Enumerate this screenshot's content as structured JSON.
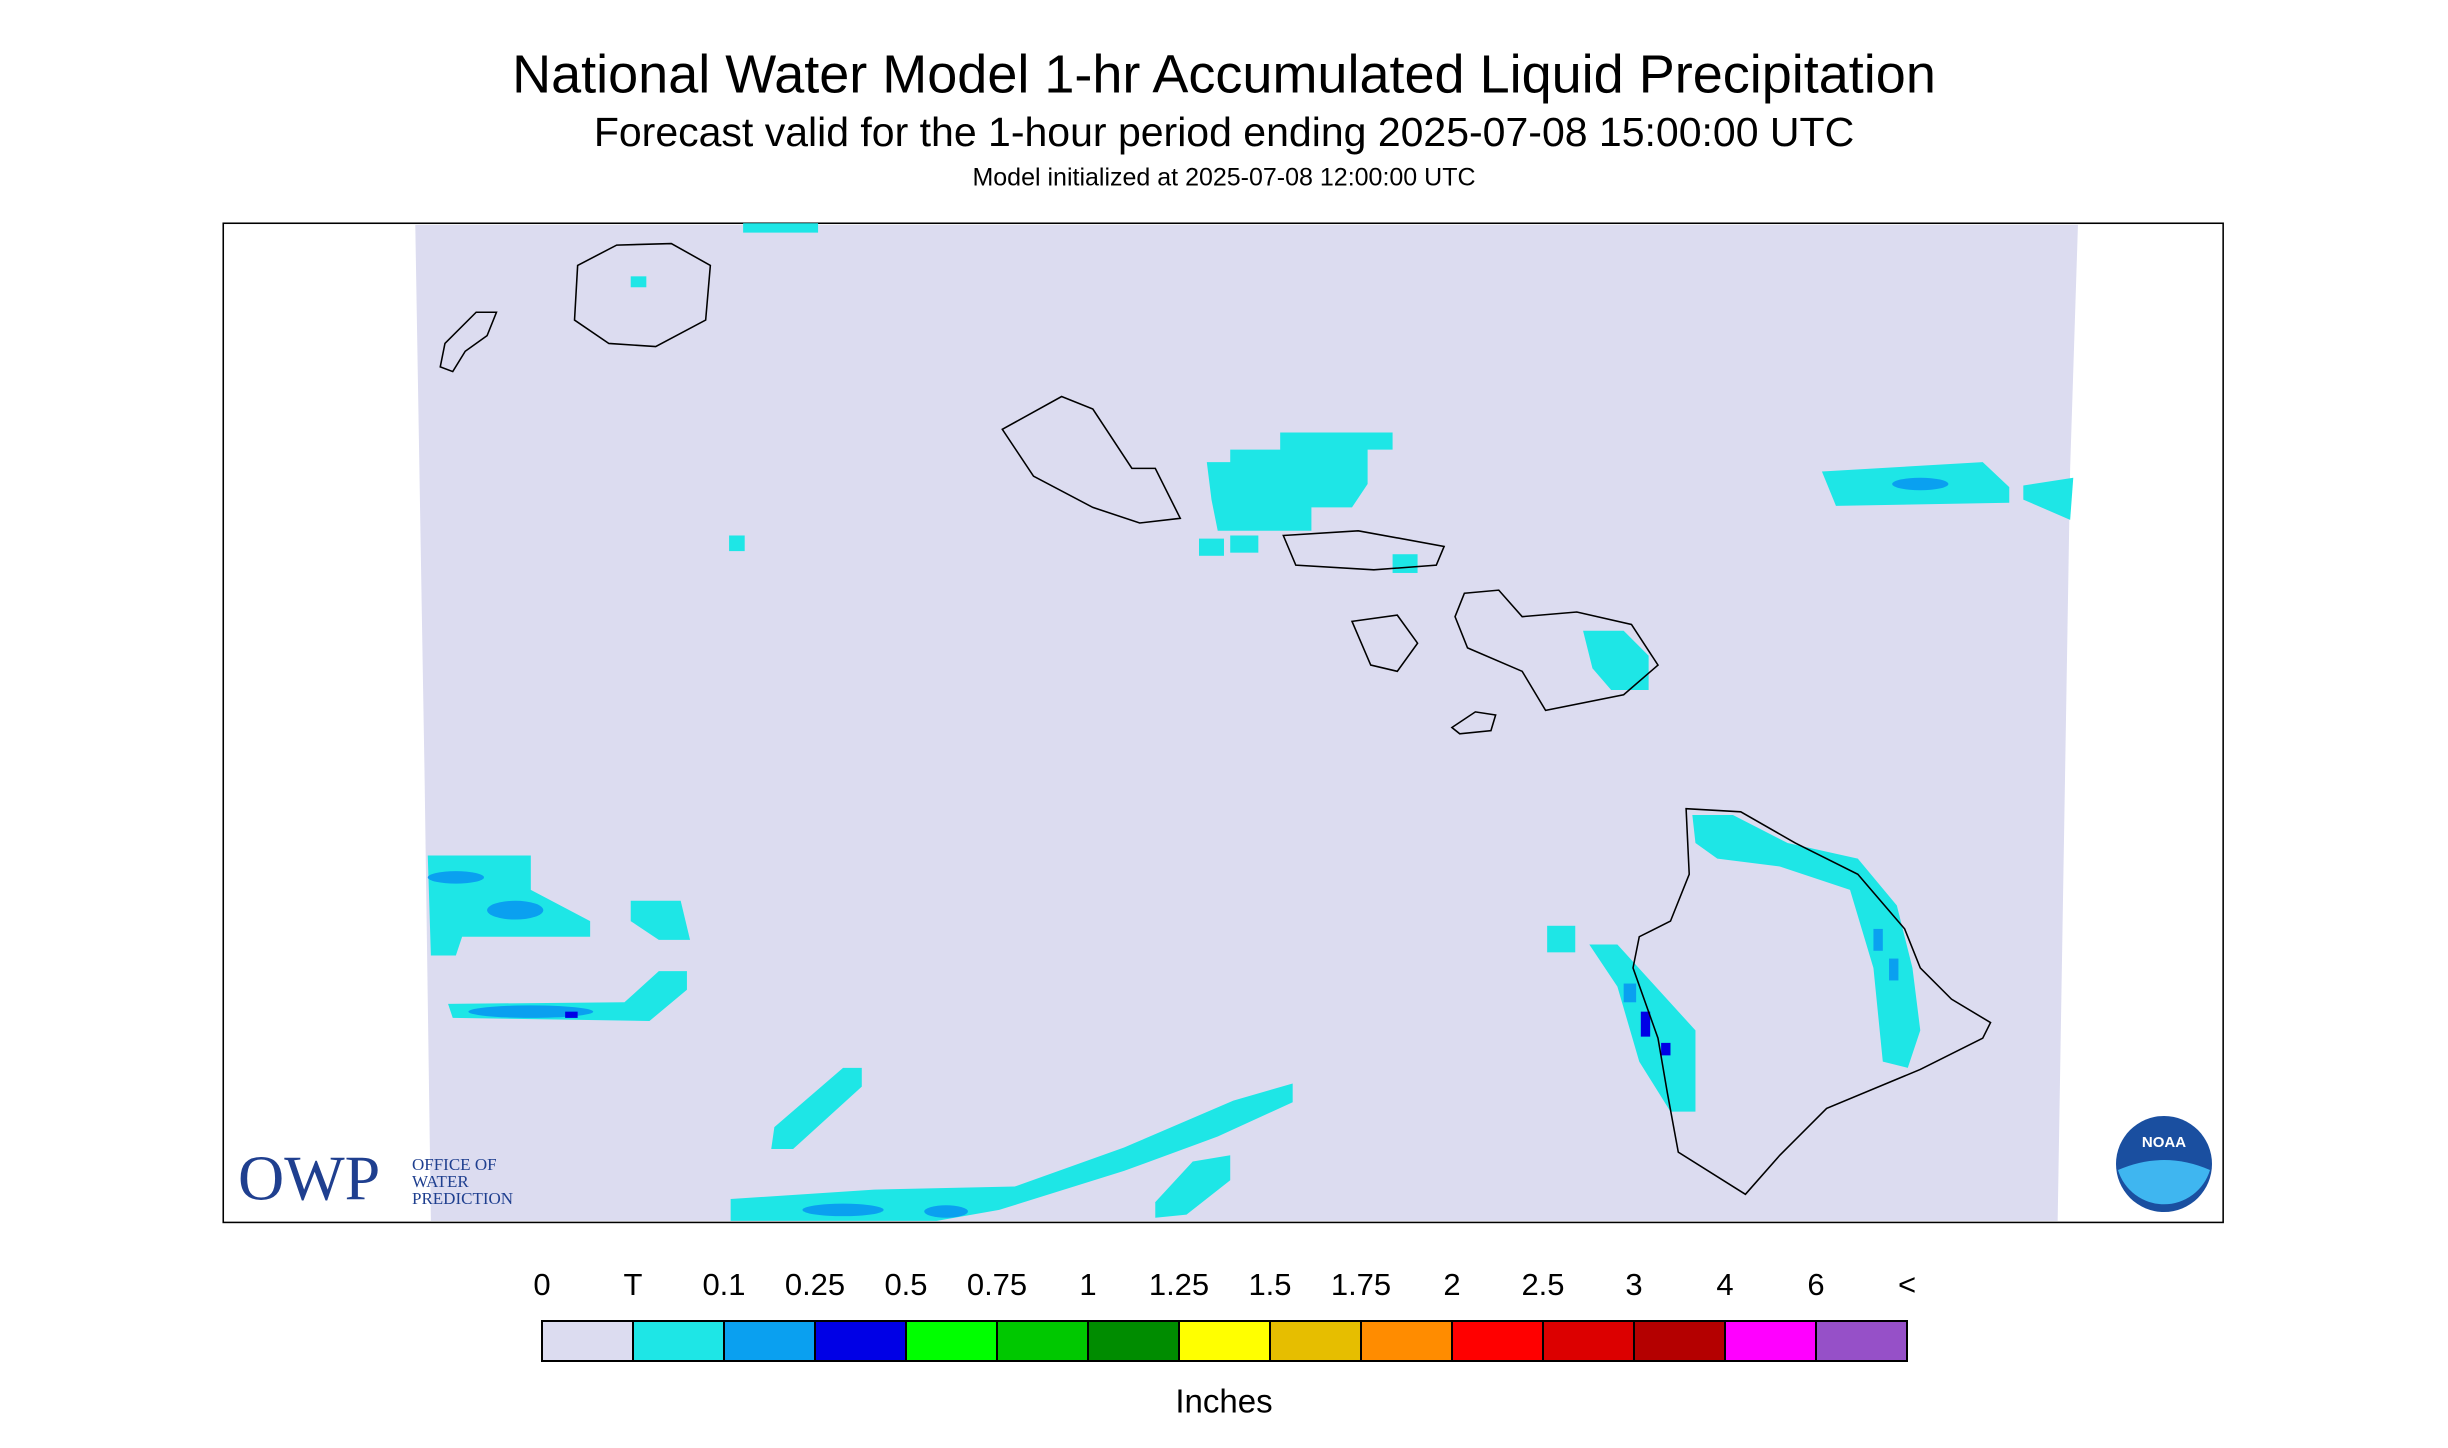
{
  "header": {
    "title": "National Water Model 1-hr Accumulated Liquid Precipitation",
    "subtitle": "Forecast valid for the 1-hour period ending 2025-07-08 15:00:00 UTC",
    "init": "Model initialized at 2025-07-08 12:00:00 UTC"
  },
  "logos": {
    "owp": "OWP",
    "owp_lines": [
      "OFFICE OF",
      "WATER",
      "PREDICTION"
    ],
    "noaa": "NOAA"
  },
  "legend": {
    "labels": [
      "0",
      "T",
      "0.1",
      "0.25",
      "0.5",
      "0.75",
      "1",
      "1.25",
      "1.5",
      "1.75",
      "2",
      "2.5",
      "3",
      "4",
      "6",
      "<"
    ],
    "colors": [
      "#dcdcf0",
      "#1ee6e6",
      "#0aa0f0",
      "#0000e6",
      "#00ff00",
      "#00c800",
      "#008c00",
      "#ffff00",
      "#e6be00",
      "#ff8c00",
      "#ff0000",
      "#dc0000",
      "#b40000",
      "#ff00ff",
      "#9650c8"
    ],
    "unit": "Inches"
  }
}
